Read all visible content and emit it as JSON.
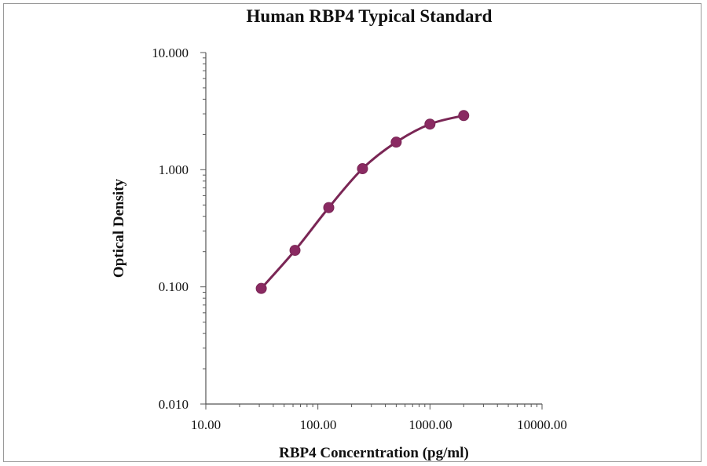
{
  "chart_data": {
    "type": "line",
    "title": "Human RBP4 Typical Standard",
    "xlabel": "RBP4 Concerntration (pg/ml)",
    "ylabel": "Optical Density",
    "x_scale": "log",
    "y_scale": "log",
    "xlim": [
      10,
      10000
    ],
    "ylim": [
      0.01,
      10
    ],
    "x_tick_labels": [
      "10.00",
      "100.00",
      "1000.00",
      "10000.00"
    ],
    "y_tick_labels": [
      "10.000",
      "1.000",
      "0.100",
      "0.010"
    ],
    "grid": false,
    "series": [
      {
        "x": [
          31.25,
          62.5,
          125,
          250,
          500,
          1000,
          2000
        ],
        "y": [
          0.097,
          0.205,
          0.475,
          1.02,
          1.72,
          2.45,
          2.9
        ],
        "color": "#7a2655",
        "marker_color": "#8a2a62"
      }
    ]
  }
}
